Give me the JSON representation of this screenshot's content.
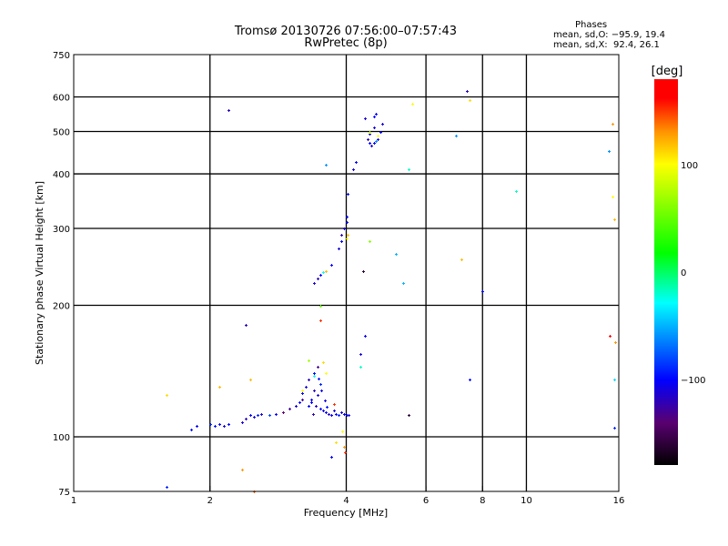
{
  "header": {
    "title_line1": "Tromsø 20130726 07:56:00–07:57:43",
    "title_line2": "RwPretec (8p)"
  },
  "stats": {
    "heading": "Phases",
    "o_mode": "mean, sd,O: −95.9, 19.4",
    "x_mode": "mean, sd,X:  92.4, 26.1"
  },
  "colorbar": {
    "label": "[deg]",
    "range": [
      -180,
      180
    ],
    "ticks": [
      "100",
      "0",
      "−100"
    ],
    "tick_values": [
      100,
      0,
      -100
    ]
  },
  "chart_data": {
    "type": "scatter",
    "title": "Tromsø 20130726 07:56:00–07:57:43 RwPretec (8p)",
    "xlabel": "Frequency [MHz]",
    "ylabel": "Stationary phase Virtual Height [km]",
    "xscale": "log",
    "yscale": "log",
    "xlim": [
      1,
      16
    ],
    "ylim": [
      75,
      750
    ],
    "xticks": [
      1,
      2,
      4,
      6,
      8,
      10,
      16
    ],
    "xtick_labels": [
      "1",
      "2",
      "4",
      "6",
      "8",
      "10",
      "16"
    ],
    "yticks": [
      75,
      100,
      200,
      300,
      400,
      500,
      600,
      750
    ],
    "ytick_labels": [
      "75",
      "100",
      "200",
      "300",
      "400",
      "500",
      "600",
      "750"
    ],
    "xgrid": [
      2,
      4,
      6,
      8,
      10
    ],
    "ygrid": [
      100,
      200,
      300,
      400,
      500,
      600
    ],
    "point_fields": [
      "frequency_MHz",
      "height_km",
      "phase_deg"
    ],
    "points": [
      [
        1.82,
        104,
        -95
      ],
      [
        1.87,
        106,
        -100
      ],
      [
        2.0,
        107,
        -90
      ],
      [
        2.05,
        106,
        -95
      ],
      [
        2.1,
        107,
        -100
      ],
      [
        2.15,
        106,
        -110
      ],
      [
        2.2,
        107,
        -100
      ],
      [
        2.35,
        108,
        -110
      ],
      [
        2.4,
        110,
        -120
      ],
      [
        2.45,
        112,
        -100
      ],
      [
        2.5,
        111,
        -110
      ],
      [
        2.55,
        112,
        -90
      ],
      [
        2.6,
        113,
        -110
      ],
      [
        2.7,
        112,
        -80
      ],
      [
        2.8,
        113,
        -100
      ],
      [
        2.9,
        114,
        -140
      ],
      [
        3.0,
        116,
        -130
      ],
      [
        3.1,
        118,
        -110
      ],
      [
        3.15,
        120,
        -100
      ],
      [
        3.2,
        122,
        -130
      ],
      [
        3.2,
        126,
        -100
      ],
      [
        3.25,
        130,
        -110
      ],
      [
        3.3,
        135,
        -120
      ],
      [
        3.3,
        118,
        -100
      ],
      [
        3.35,
        120,
        -100
      ],
      [
        3.4,
        128,
        -120
      ],
      [
        3.4,
        140,
        -100
      ],
      [
        3.45,
        125,
        -110
      ],
      [
        3.45,
        145,
        -130
      ],
      [
        3.5,
        132,
        -90
      ],
      [
        3.5,
        116,
        -100
      ],
      [
        3.55,
        115,
        -110
      ],
      [
        3.6,
        114,
        -100
      ],
      [
        3.65,
        113,
        -120
      ],
      [
        3.7,
        112,
        -100
      ],
      [
        3.75,
        115,
        -110
      ],
      [
        3.8,
        113,
        -100
      ],
      [
        3.85,
        112,
        -90
      ],
      [
        3.9,
        114,
        -110
      ],
      [
        3.95,
        113,
        -100
      ],
      [
        4.0,
        112,
        -100
      ],
      [
        4.05,
        112,
        -105
      ],
      [
        3.35,
        122,
        -105
      ],
      [
        3.42,
        118,
        -115
      ],
      [
        3.48,
        136,
        -95
      ],
      [
        3.52,
        128,
        -105
      ],
      [
        3.58,
        121,
        -110
      ],
      [
        3.62,
        117,
        -95
      ],
      [
        3.38,
        113,
        -120
      ],
      [
        3.3,
        150,
        70
      ],
      [
        3.55,
        148,
        110
      ],
      [
        3.6,
        140,
        100
      ],
      [
        3.4,
        138,
        -30
      ],
      [
        3.2,
        128,
        100
      ],
      [
        2.45,
        135,
        120
      ],
      [
        2.1,
        130,
        120
      ],
      [
        1.6,
        125,
        110
      ],
      [
        3.75,
        119,
        150
      ],
      [
        3.92,
        103,
        100
      ],
      [
        3.95,
        95,
        130
      ],
      [
        3.98,
        92,
        150
      ],
      [
        3.8,
        97,
        110
      ],
      [
        2.35,
        84,
        130
      ],
      [
        2.5,
        75,
        140
      ],
      [
        1.6,
        77,
        -90
      ],
      [
        3.7,
        90,
        -100
      ],
      [
        4.3,
        155,
        -110
      ],
      [
        4.3,
        145,
        -20
      ],
      [
        3.4,
        225,
        -110
      ],
      [
        3.45,
        230,
        -120
      ],
      [
        3.5,
        235,
        -100
      ],
      [
        3.55,
        238,
        -30
      ],
      [
        3.6,
        240,
        120
      ],
      [
        3.7,
        248,
        -100
      ],
      [
        3.5,
        200,
        50
      ],
      [
        3.5,
        185,
        150
      ],
      [
        3.85,
        270,
        -110
      ],
      [
        3.9,
        280,
        -100
      ],
      [
        3.9,
        290,
        -120
      ],
      [
        3.95,
        300,
        -110
      ],
      [
        4.0,
        310,
        -100
      ],
      [
        4.0,
        320,
        -100
      ],
      [
        4.02,
        360,
        -100
      ],
      [
        4.02,
        290,
        120
      ],
      [
        4.0,
        285,
        100
      ],
      [
        4.35,
        240,
        -160
      ],
      [
        4.5,
        280,
        60
      ],
      [
        5.15,
        262,
        -50
      ],
      [
        5.35,
        225,
        -50
      ],
      [
        2.4,
        180,
        -120
      ],
      [
        3.6,
        420,
        -60
      ],
      [
        4.2,
        425,
        -100
      ],
      [
        4.15,
        410,
        -110
      ],
      [
        4.4,
        535,
        -110
      ],
      [
        4.6,
        540,
        -100
      ],
      [
        4.65,
        550,
        -100
      ],
      [
        4.6,
        510,
        -110
      ],
      [
        4.5,
        495,
        -110
      ],
      [
        4.45,
        480,
        -120
      ],
      [
        4.5,
        470,
        -100
      ],
      [
        4.55,
        465,
        -110
      ],
      [
        4.6,
        470,
        -100
      ],
      [
        4.7,
        480,
        -110
      ],
      [
        4.75,
        500,
        -100
      ],
      [
        4.8,
        520,
        -110
      ],
      [
        4.7,
        490,
        100
      ],
      [
        4.5,
        500,
        80
      ],
      [
        4.65,
        475,
        -60
      ],
      [
        5.5,
        410,
        -20
      ],
      [
        5.6,
        580,
        100
      ],
      [
        2.2,
        560,
        -120
      ],
      [
        7.0,
        490,
        -60
      ],
      [
        7.4,
        620,
        -120
      ],
      [
        7.5,
        590,
        110
      ],
      [
        7.2,
        255,
        120
      ],
      [
        7.5,
        135,
        -100
      ],
      [
        8.0,
        215,
        -100
      ],
      [
        9.5,
        365,
        -20
      ],
      [
        15.2,
        450,
        -60
      ],
      [
        15.5,
        520,
        130
      ],
      [
        15.5,
        355,
        100
      ],
      [
        15.6,
        315,
        120
      ],
      [
        15.3,
        170,
        160
      ],
      [
        15.7,
        165,
        130
      ],
      [
        15.6,
        135,
        -40
      ],
      [
        15.6,
        105,
        -90
      ],
      [
        5.5,
        112,
        -160
      ],
      [
        4.4,
        170,
        -100
      ]
    ]
  }
}
